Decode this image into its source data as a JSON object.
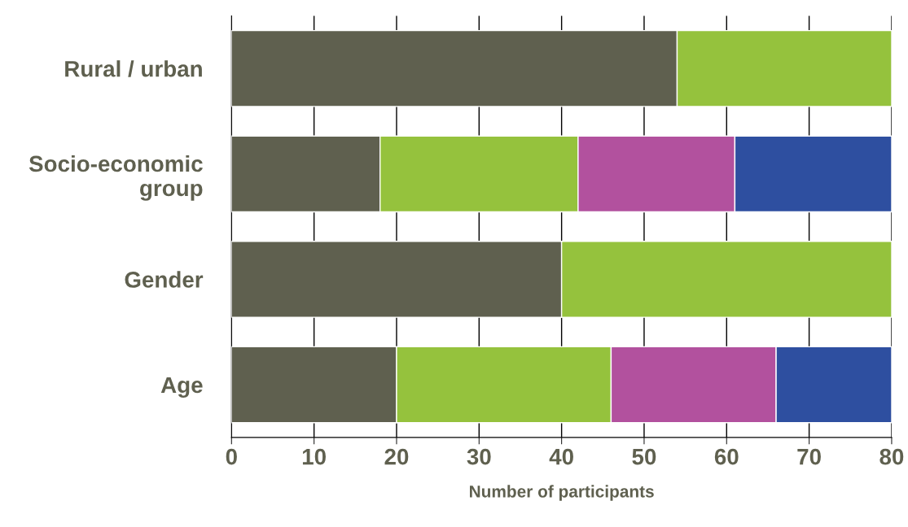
{
  "chart_data": {
    "type": "bar",
    "orientation": "horizontal",
    "stacked": true,
    "xlabel": "Number of participants",
    "categories": [
      "Rural / urban",
      "Socio-economic\ngroup",
      "Gender",
      "Age"
    ],
    "series": [
      {
        "color": "#5f604f",
        "values": [
          54,
          18,
          40,
          20
        ]
      },
      {
        "color": "#95c23d",
        "values": [
          26,
          24,
          40,
          26
        ]
      },
      {
        "color": "#b2519e",
        "values": [
          null,
          19,
          null,
          20
        ]
      },
      {
        "color": "#2e4fa0",
        "values": [
          null,
          19,
          null,
          14
        ]
      }
    ],
    "xlim": [
      0,
      80
    ],
    "xticks": [
      0,
      10,
      20,
      30,
      40,
      50,
      60,
      70,
      80
    ],
    "grid": "x",
    "legend": false
  }
}
